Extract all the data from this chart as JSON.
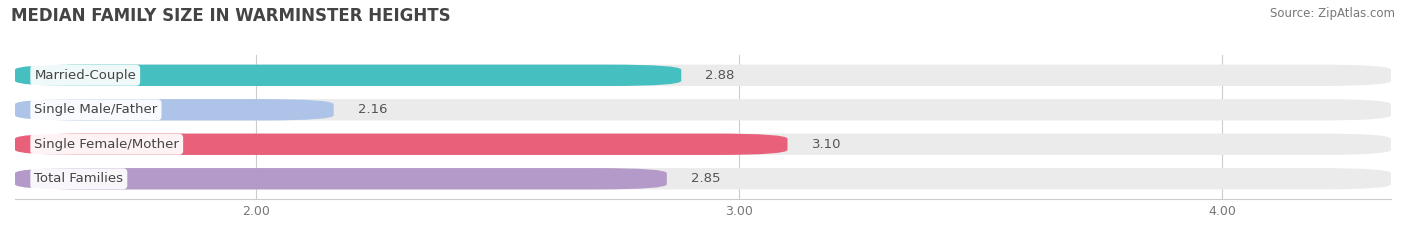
{
  "title": "MEDIAN FAMILY SIZE IN WARMINSTER HEIGHTS",
  "source": "Source: ZipAtlas.com",
  "categories": [
    "Married-Couple",
    "Single Male/Father",
    "Single Female/Mother",
    "Total Families"
  ],
  "values": [
    2.88,
    2.16,
    3.1,
    2.85
  ],
  "bar_colors": [
    "#45bfc0",
    "#adc4e8",
    "#e8607a",
    "#b39ac8"
  ],
  "xlim": [
    1.5,
    4.35
  ],
  "xmin": 1.5,
  "xticks": [
    2.0,
    3.0,
    4.0
  ],
  "xtick_labels": [
    "2.00",
    "3.00",
    "4.00"
  ],
  "background_color": "#ffffff",
  "bar_bg_color": "#ebebeb",
  "bar_height": 0.62,
  "label_fontsize": 9.5,
  "title_fontsize": 12,
  "value_fontsize": 9.5,
  "source_fontsize": 8.5,
  "tick_fontsize": 9
}
